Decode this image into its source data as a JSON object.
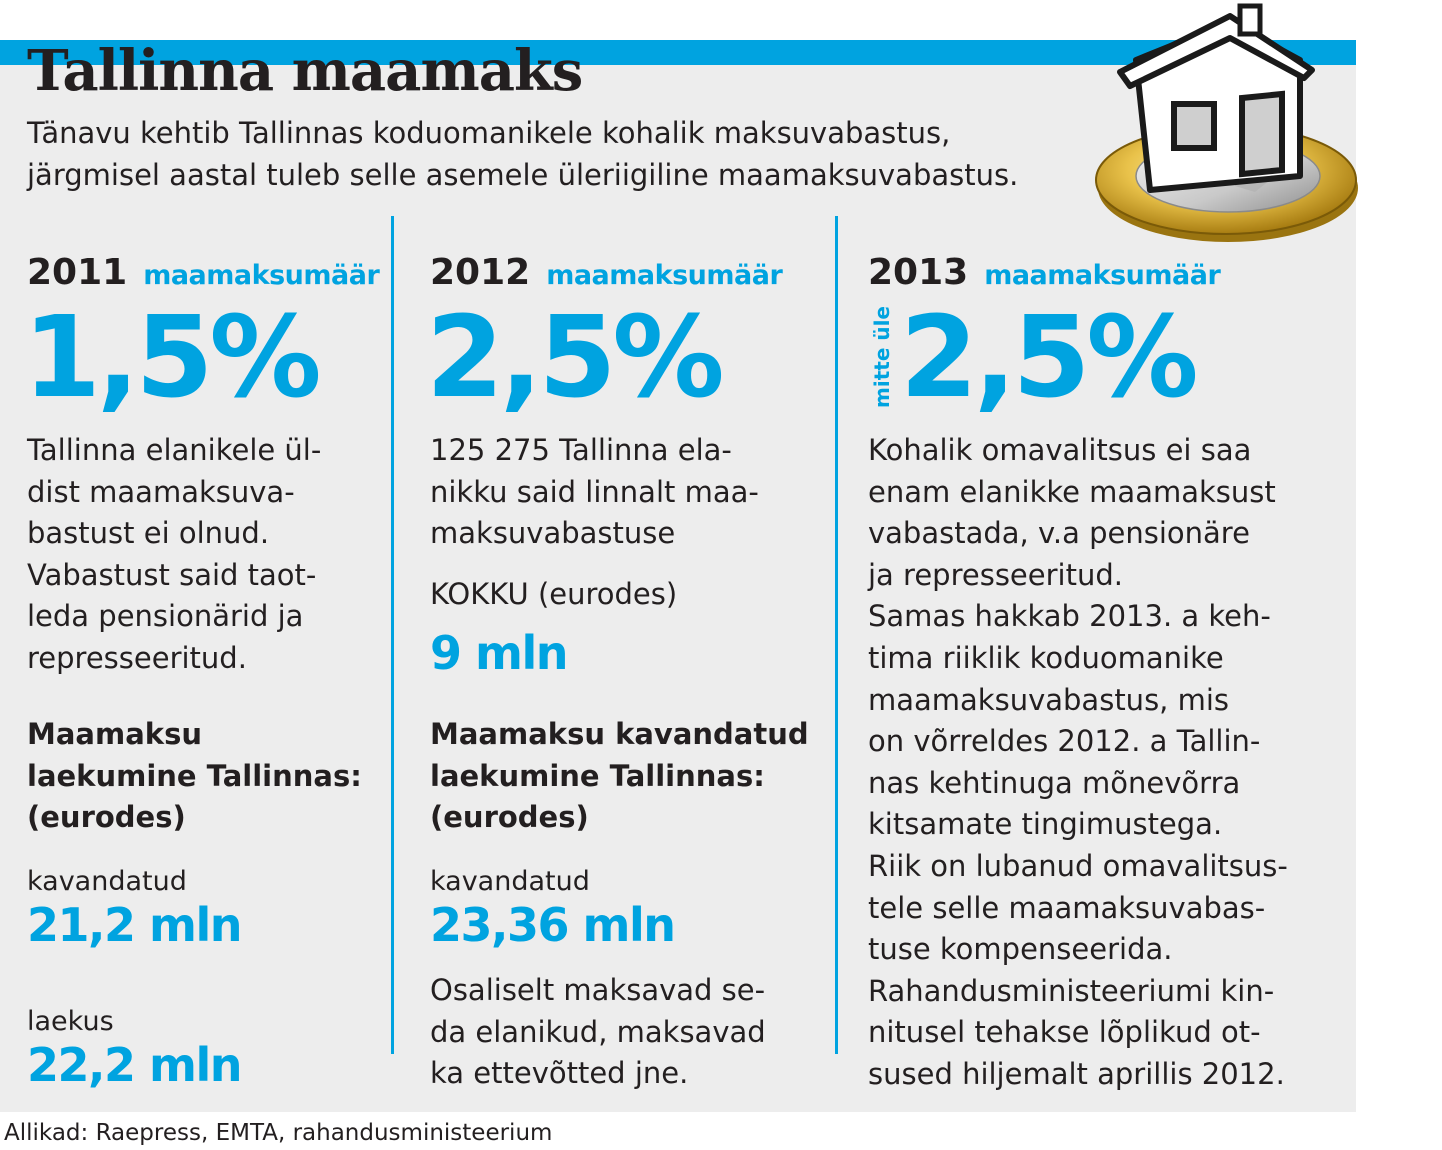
{
  "title": "Tallinna maamaks",
  "lead": {
    "line1": "Tänavu kehtib Tallinnas koduomanikele kohalik maksuvabastus,",
    "line2": "järgmisel aastal tuleb selle asemele üleriigiline maamaksuvabastus."
  },
  "col2011": {
    "year": "2011",
    "rate_label": "maamaksumäär",
    "rate": "1,5%",
    "text": "Tallinna elanikele ül-\ndist maamaksuva-\nbastust ei olnud.\nVabastust said taot-\nleda pensionärid ja\nrepresseeritud.",
    "revenue_heading": "Maamaksu\nlaekumine Tallinnas:\n(eurodes)",
    "planned_label": "kavandatud",
    "planned_value": "21,2 mln",
    "received_label": "laekus",
    "received_value": "22,2 mln"
  },
  "col2012": {
    "year": "2012",
    "rate_label": "maamaksumäär",
    "rate": "2,5%",
    "text": "125 275 Tallinna ela-\nnikku said linnalt maa-\nmaksuvabastuse",
    "total_label": "KOKKU (eurodes)",
    "total_value": "9 mln",
    "revenue_heading": "Maamaksu kavandatud\nlaekumine Tallinnas:\n(eurodes)",
    "planned_label": "kavandatud",
    "planned_value": "23,36 mln",
    "note": "Osaliselt maksavad se-\nda elanikud, maksavad\nka ettevõtted jne."
  },
  "col2013": {
    "year": "2013",
    "rate_label": "maamaksumäär",
    "rate_prefix": "mitte üle",
    "rate": "2,5%",
    "text": "Kohalik omavalitsus ei saa\nenam elanikke maamaksust\nvabastada, v.a pensionäre\nja represseeritud.\nSamas hakkab 2013. a keh-\ntima riiklik koduomanike\nmaamaksuvabastus, mis\non võrreldes 2012. a Tallin-\nnas kehtinuga mõnevõrra\nkitsamate tingimustega.\nRiik on lubanud omavalitsus-\ntele selle maamaksuvabas-\ntuse kompenseerida.\nRahandusministeeriumi kin-\nnitusel tehakse lõplikud ot-\nsused hiljemalt aprillis 2012."
  },
  "source": "Allikad: Raepress, EMTA, rahandusministeerium",
  "colors": {
    "accent": "#00a3e0",
    "panel": "#ededed",
    "text": "#231f20"
  },
  "illustration": "house-on-euro-coin-icon"
}
